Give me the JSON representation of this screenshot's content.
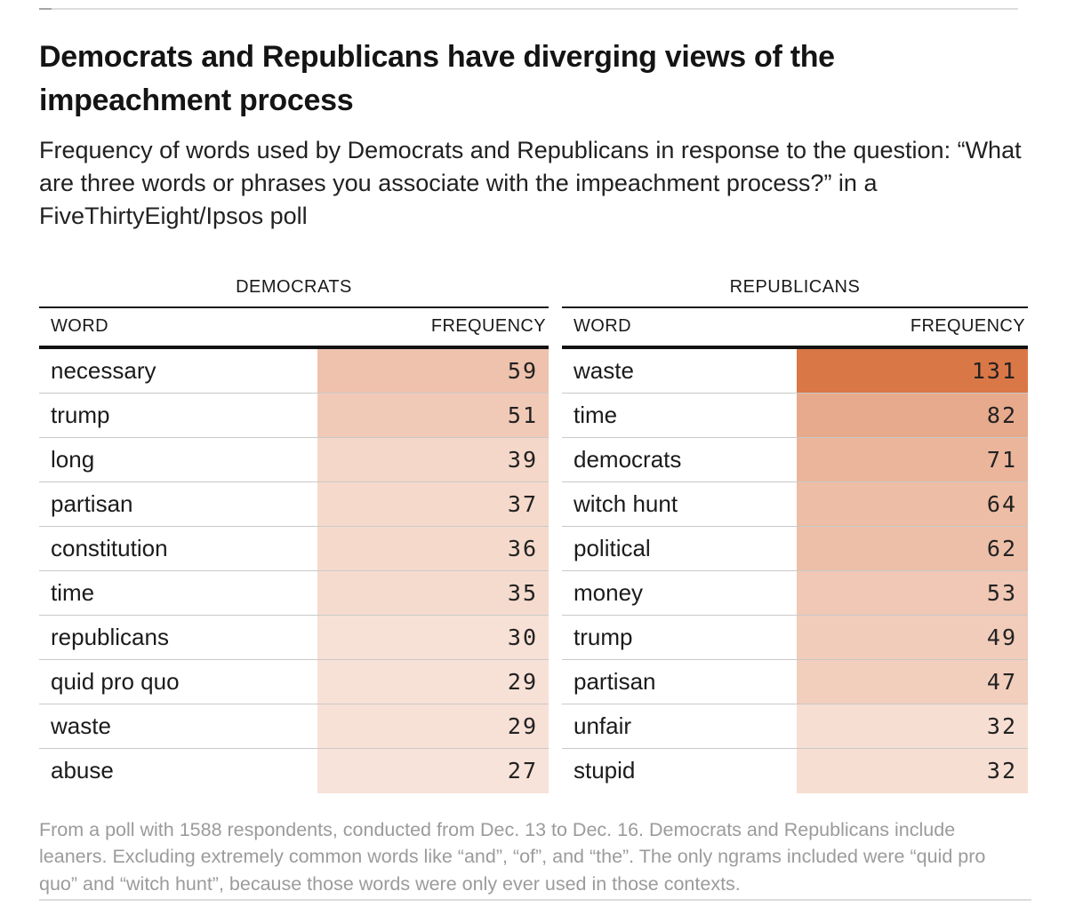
{
  "page": {
    "title": "Democrats and Republicans have diverging views of the impeachment process",
    "subtitle": "Frequency of words used by Democrats and Republicans in response to the question: “What are three words or phrases you associate with the impeachment process?” in a FiveThirtyEight/Ipsos poll",
    "footnote": "From a poll with 1588 respondents, conducted from Dec. 13 to Dec. 16. Democrats and Republicans include leaners. Excluding extremely common words like “and”, “of”, and “the”. The only ngrams included were “quid pro quo” and “witch hunt”, because those words were only ever used in those contexts."
  },
  "colors": {
    "shade_min": "#ffffff",
    "shade_max": "#da7747",
    "rule_dark": "#1a1a1a",
    "rule_light": "#dcdcdc",
    "divider_gray": "#c9c9c9",
    "footnote_gray": "#9b9b9b"
  },
  "chart_data": {
    "type": "table",
    "layout": "two side-by-side heat-shaded frequency tables",
    "shading": {
      "scale": "linear",
      "domain": [
        0,
        131
      ],
      "range": [
        "#ffffff",
        "#da7747"
      ],
      "applies_to": "FREQUENCY column background"
    },
    "tables": [
      {
        "group": "DEMOCRATS",
        "columns": [
          "WORD",
          "FREQUENCY"
        ],
        "rows": [
          [
            "necessary",
            59
          ],
          [
            "trump",
            51
          ],
          [
            "long",
            39
          ],
          [
            "partisan",
            37
          ],
          [
            "constitution",
            36
          ],
          [
            "time",
            35
          ],
          [
            "republicans",
            30
          ],
          [
            "quid pro quo",
            29
          ],
          [
            "waste",
            29
          ],
          [
            "abuse",
            27
          ]
        ]
      },
      {
        "group": "REPUBLICANS",
        "columns": [
          "WORD",
          "FREQUENCY"
        ],
        "rows": [
          [
            "waste",
            131
          ],
          [
            "time",
            82
          ],
          [
            "democrats",
            71
          ],
          [
            "witch hunt",
            64
          ],
          [
            "political",
            62
          ],
          [
            "money",
            53
          ],
          [
            "trump",
            49
          ],
          [
            "partisan",
            47
          ],
          [
            "unfair",
            32
          ],
          [
            "stupid",
            32
          ]
        ]
      }
    ]
  }
}
